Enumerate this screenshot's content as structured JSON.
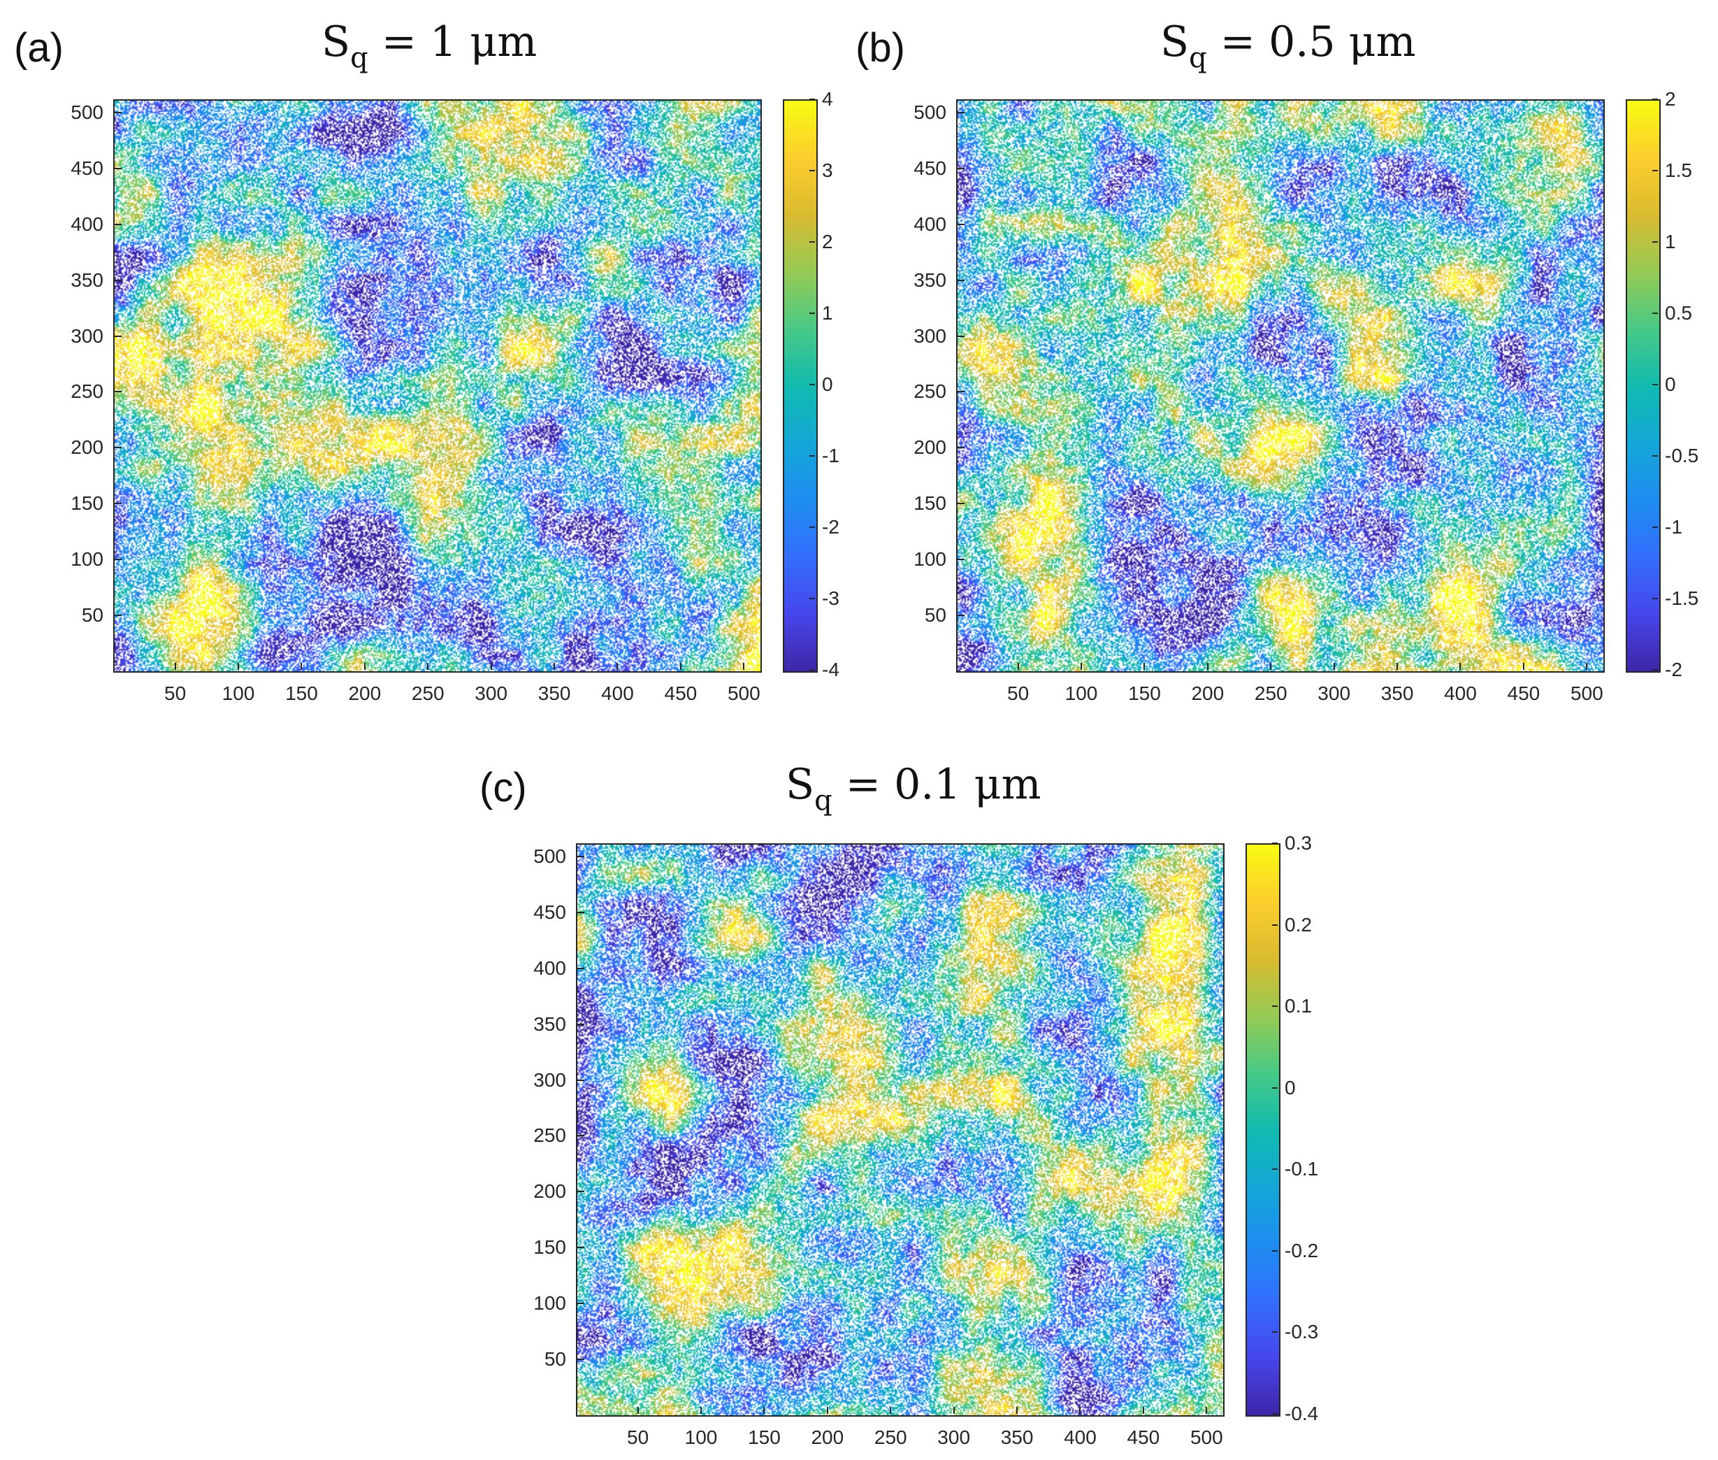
{
  "chart_data": [
    {
      "type": "heatmap",
      "panel_label": "(a)",
      "title_main": "S",
      "title_sub": "q",
      "title_rest": " = 1 μm",
      "x_ticks": [
        "50",
        "100",
        "150",
        "200",
        "250",
        "300",
        "350",
        "400",
        "450",
        "500"
      ],
      "y_ticks": [
        "500",
        "450",
        "400",
        "350",
        "300",
        "250",
        "200",
        "150",
        "100",
        "50"
      ],
      "xlim": [
        1,
        512
      ],
      "ylim": [
        1,
        512
      ],
      "colorbar": {
        "min": -4,
        "max": 4,
        "ticks": [
          "4",
          "3",
          "2",
          "1",
          "0",
          "-1",
          "-2",
          "-3",
          "-4"
        ],
        "colormap": "parula"
      },
      "seed": 11
    },
    {
      "type": "heatmap",
      "panel_label": "(b)",
      "title_main": "S",
      "title_sub": "q",
      "title_rest": " = 0.5 μm",
      "x_ticks": [
        "50",
        "100",
        "150",
        "200",
        "250",
        "300",
        "350",
        "400",
        "450",
        "500"
      ],
      "y_ticks": [
        "500",
        "450",
        "400",
        "350",
        "300",
        "250",
        "200",
        "150",
        "100",
        "50"
      ],
      "xlim": [
        1,
        512
      ],
      "ylim": [
        1,
        512
      ],
      "colorbar": {
        "min": -2,
        "max": 2,
        "ticks": [
          "2",
          "1.5",
          "1",
          "0.5",
          "0",
          "-0.5",
          "-1",
          "-1.5",
          "-2"
        ],
        "colormap": "parula"
      },
      "seed": 23
    },
    {
      "type": "heatmap",
      "panel_label": "(c)",
      "title_main": "S",
      "title_sub": "q",
      "title_rest": " = 0.1 μm",
      "x_ticks": [
        "50",
        "100",
        "150",
        "200",
        "250",
        "300",
        "350",
        "400",
        "450",
        "500"
      ],
      "y_ticks": [
        "500",
        "450",
        "400",
        "350",
        "300",
        "250",
        "200",
        "150",
        "100",
        "50"
      ],
      "xlim": [
        1,
        512
      ],
      "ylim": [
        1,
        512
      ],
      "colorbar": {
        "min": -0.4,
        "max": 0.3,
        "ticks": [
          "0.3",
          "0.2",
          "0.1",
          "0",
          "-0.1",
          "-0.2",
          "-0.3",
          "-0.4"
        ],
        "colormap": "parula"
      },
      "seed": 37
    }
  ]
}
